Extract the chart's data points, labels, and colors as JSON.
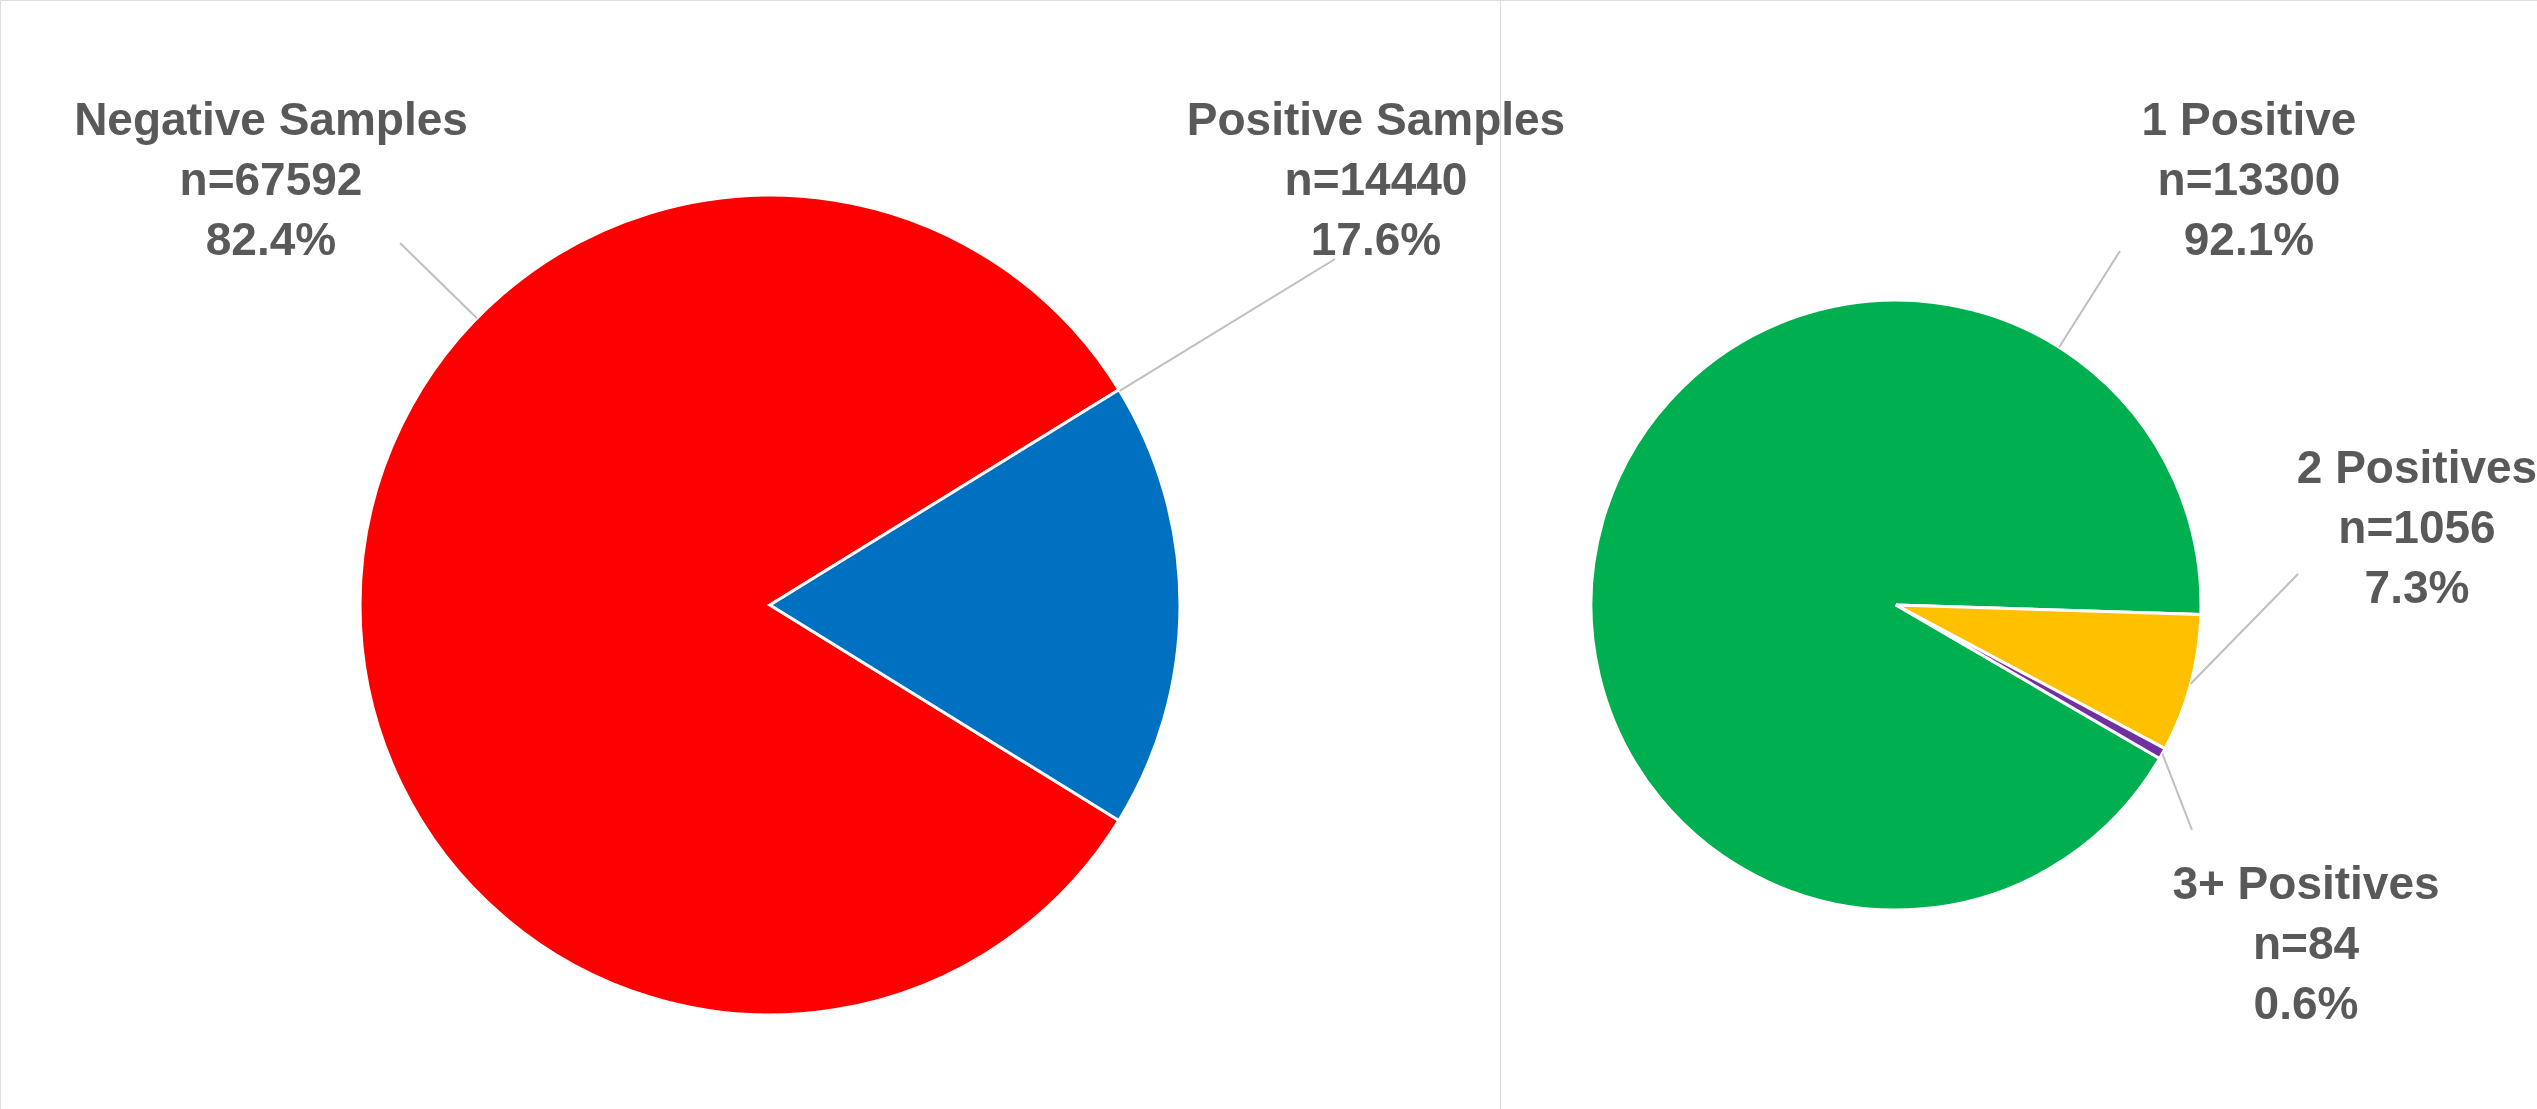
{
  "chart_data": [
    {
      "type": "pie",
      "categories": [
        "Negative Samples",
        "Positive Samples"
      ],
      "values": [
        67592,
        14440
      ],
      "colors": [
        "#ff0000",
        "#0070c0"
      ],
      "value_labels": [
        "n=67592\n82.4%",
        "n=14440\n17.6%"
      ]
    },
    {
      "type": "pie",
      "categories": [
        "1 Positive",
        "2 Positives",
        "3+ Positives"
      ],
      "values": [
        13300,
        1056,
        84
      ],
      "colors": [
        "#00b050",
        "#ffc000",
        "#7030a0"
      ],
      "value_labels": [
        "n=13300\n92.1%",
        "n=1056\n7.3%",
        "n=84\n0.6%"
      ]
    }
  ]
}
